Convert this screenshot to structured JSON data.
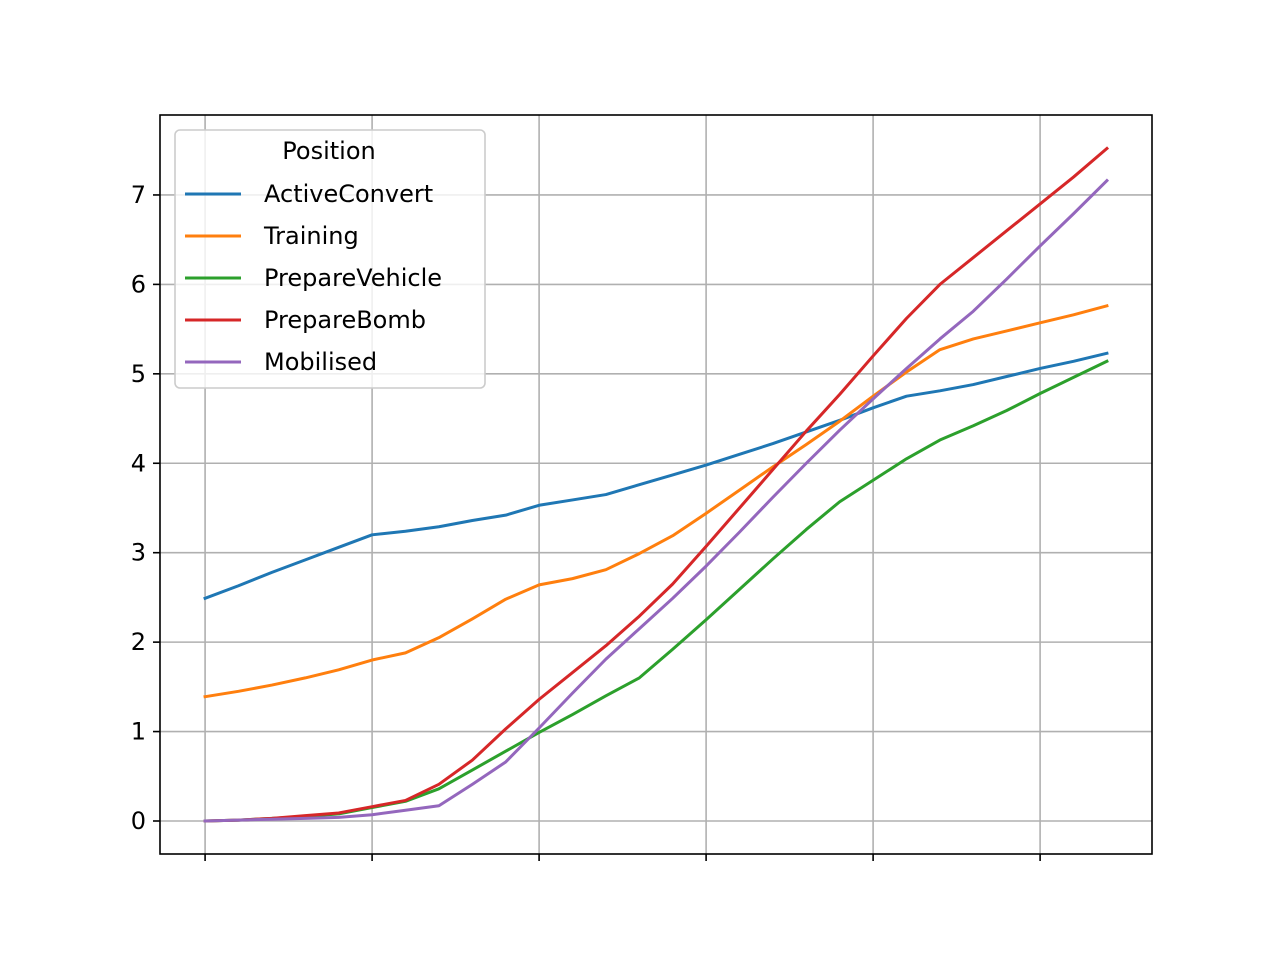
{
  "chart_data": {
    "type": "line",
    "x": [
      0,
      1,
      2,
      3,
      4,
      5,
      6,
      7,
      8,
      9,
      10,
      11,
      12,
      13,
      14,
      15,
      16,
      17,
      18,
      19,
      20,
      21,
      22,
      23,
      24,
      25,
      26,
      27
    ],
    "xlim": [
      -1.35,
      28.35
    ],
    "xticks": [
      {
        "value": 0,
        "label": null
      },
      {
        "value": 5,
        "label": null
      },
      {
        "value": 10,
        "label": null
      },
      {
        "value": 15,
        "label": null
      },
      {
        "value": 20,
        "label": null
      },
      {
        "value": 25,
        "label": null
      }
    ],
    "ylim": [
      -0.369,
      7.894
    ],
    "yticks": [
      0,
      1,
      2,
      3,
      4,
      5,
      6,
      7
    ],
    "grid": true,
    "legend_title": "Position",
    "legend_loc": "upper-left",
    "series": [
      {
        "name": "ActiveConvert",
        "color": "#1f77b4",
        "values": [
          2.49,
          2.63,
          2.78,
          2.92,
          3.06,
          3.2,
          3.24,
          3.29,
          3.36,
          3.42,
          3.53,
          3.59,
          3.65,
          3.76,
          3.87,
          3.98,
          4.1,
          4.22,
          4.35,
          4.48,
          4.62,
          4.75,
          4.81,
          4.88,
          4.97,
          5.06,
          5.14,
          5.23
        ]
      },
      {
        "name": "Training",
        "color": "#ff7f0e",
        "values": [
          1.39,
          1.45,
          1.52,
          1.6,
          1.69,
          1.8,
          1.88,
          2.05,
          2.26,
          2.48,
          2.64,
          2.71,
          2.81,
          2.99,
          3.19,
          3.44,
          3.7,
          3.96,
          4.21,
          4.47,
          4.75,
          5.02,
          5.27,
          5.39,
          5.48,
          5.57,
          5.66,
          5.76
        ]
      },
      {
        "name": "PrepareVehicle",
        "color": "#2ca02c",
        "values": [
          0,
          0.01,
          0.03,
          0.05,
          0.08,
          0.15,
          0.22,
          0.36,
          0.57,
          0.78,
          0.99,
          1.19,
          1.4,
          1.6,
          1.92,
          2.25,
          2.59,
          2.93,
          3.26,
          3.57,
          3.81,
          4.05,
          4.26,
          4.42,
          4.59,
          4.78,
          4.96,
          5.14
        ]
      },
      {
        "name": "PrepareBomb",
        "color": "#d62728",
        "values": [
          0,
          0.01,
          0.03,
          0.06,
          0.09,
          0.16,
          0.23,
          0.41,
          0.68,
          1.03,
          1.36,
          1.66,
          1.96,
          2.29,
          2.65,
          3.07,
          3.5,
          3.93,
          4.36,
          4.77,
          5.2,
          5.62,
          6.0,
          6.3,
          6.6,
          6.9,
          7.2,
          7.52
        ]
      },
      {
        "name": "Mobilised",
        "color": "#9467bd",
        "values": [
          0,
          0.01,
          0.02,
          0.03,
          0.04,
          0.07,
          0.12,
          0.17,
          0.41,
          0.66,
          1.04,
          1.43,
          1.81,
          2.15,
          2.49,
          2.85,
          3.23,
          3.62,
          4.0,
          4.37,
          4.72,
          5.06,
          5.39,
          5.7,
          6.06,
          6.43,
          6.79,
          7.16
        ]
      }
    ]
  }
}
